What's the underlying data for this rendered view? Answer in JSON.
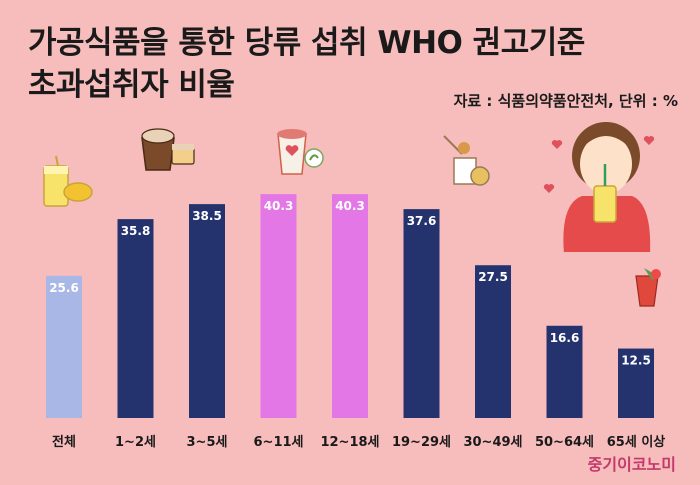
{
  "header": {
    "title_line1": "가공식품을 통한 당류 섭취 WHO 권고기준",
    "title_line2": "초과섭취자 비율",
    "source": "자료 : 식품의약품안전처, 단위 : %"
  },
  "footer": {
    "brand": "중기이코노미"
  },
  "colors": {
    "background": "#f7bcbc",
    "total": "#a9b7e6",
    "adolescent": "#e377e6",
    "default": "#24336e"
  },
  "chart_data": {
    "type": "bar",
    "categories": [
      "전체",
      "1~2세",
      "3~5세",
      "6~11세",
      "12~18세",
      "19~29세",
      "30~49세",
      "50~64세",
      "65세 이상"
    ],
    "values": [
      25.6,
      35.8,
      38.5,
      40.3,
      40.3,
      37.6,
      27.5,
      16.6,
      12.5
    ],
    "value_labels": [
      "25.6",
      "35.8",
      "38.5",
      "40.3",
      "40.3",
      "37.6",
      "27.5",
      "16.6",
      "12.5"
    ],
    "bar_colors": [
      "total",
      "default",
      "default",
      "adolescent",
      "adolescent",
      "default",
      "default",
      "default",
      "default"
    ],
    "ylim": [
      0,
      45
    ],
    "xlabel": "",
    "ylabel": ""
  }
}
